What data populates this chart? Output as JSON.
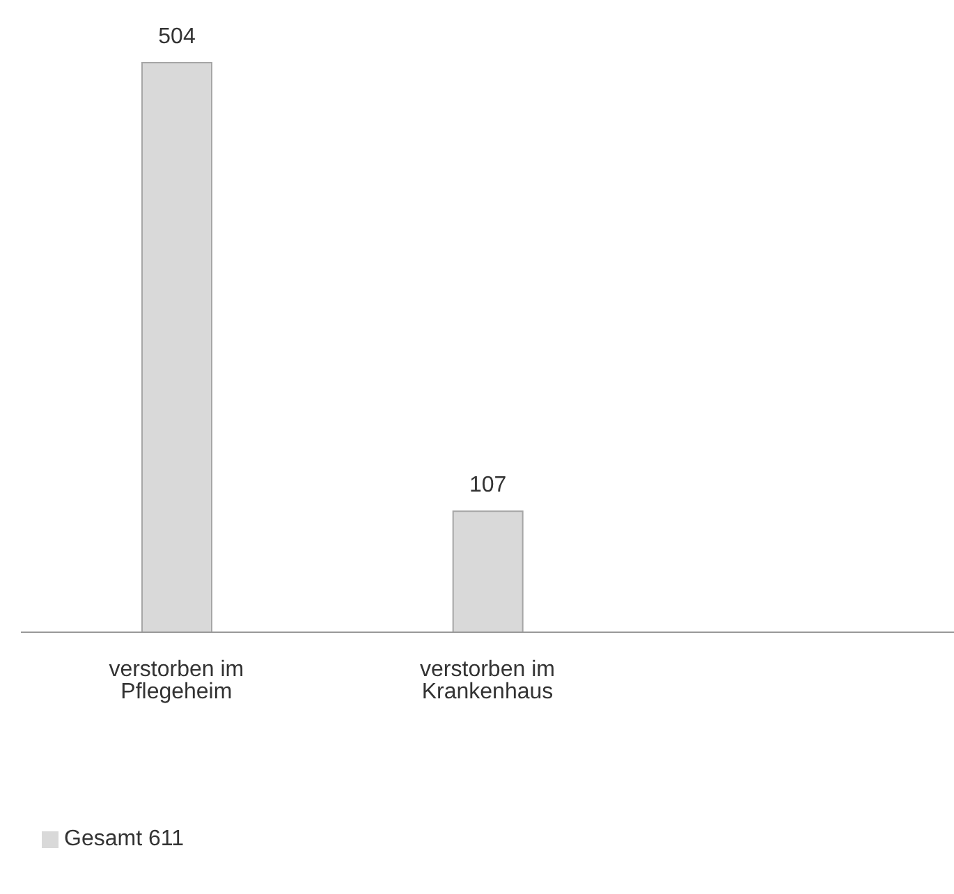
{
  "chart_data": {
    "type": "bar",
    "categories": [
      "verstorben im Pflegeheim",
      "verstorben im Krankenhaus",
      null
    ],
    "series": [
      {
        "name": "Gesamt 611",
        "color": "#d9d9d9",
        "values": [
          504,
          107,
          null
        ]
      }
    ],
    "data_labels": true,
    "legend": "bottom left"
  }
}
